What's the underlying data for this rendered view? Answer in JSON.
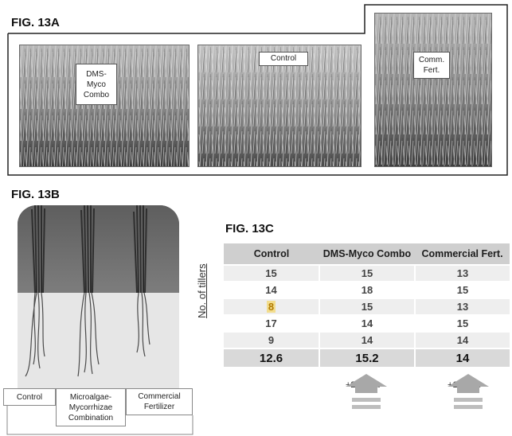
{
  "fig13a": {
    "title": "FIG. 13A",
    "labels": {
      "dms": "DMS-\nMyco\nCombo",
      "control": "Control",
      "comm": "Comm.\nFert."
    }
  },
  "fig13b": {
    "title": "FIG. 13B",
    "labels": {
      "control": "Control",
      "micro": "Microalgae-\nMycorrhizae\nCombination",
      "comm": "Commercial\nFertilizer"
    }
  },
  "fig13c": {
    "title": "FIG. 13C",
    "ylabel": "No. of tillers",
    "columns": [
      "Control",
      "DMS-Myco Combo",
      "Commercial Fert."
    ],
    "rows": [
      [
        "15",
        "15",
        "13"
      ],
      [
        "14",
        "18",
        "15"
      ],
      [
        "8",
        "15",
        "13"
      ],
      [
        "17",
        "14",
        "15"
      ],
      [
        "9",
        "14",
        "14"
      ]
    ],
    "averages": [
      "12.6",
      "15.2",
      "14"
    ],
    "increase_dms": "+20.63%",
    "increase_comm": "+11.11%"
  },
  "colors": {
    "header_bg": "#cfcfcf",
    "highlight": "#f2dd8e",
    "arrow": "#a8a8a8"
  }
}
